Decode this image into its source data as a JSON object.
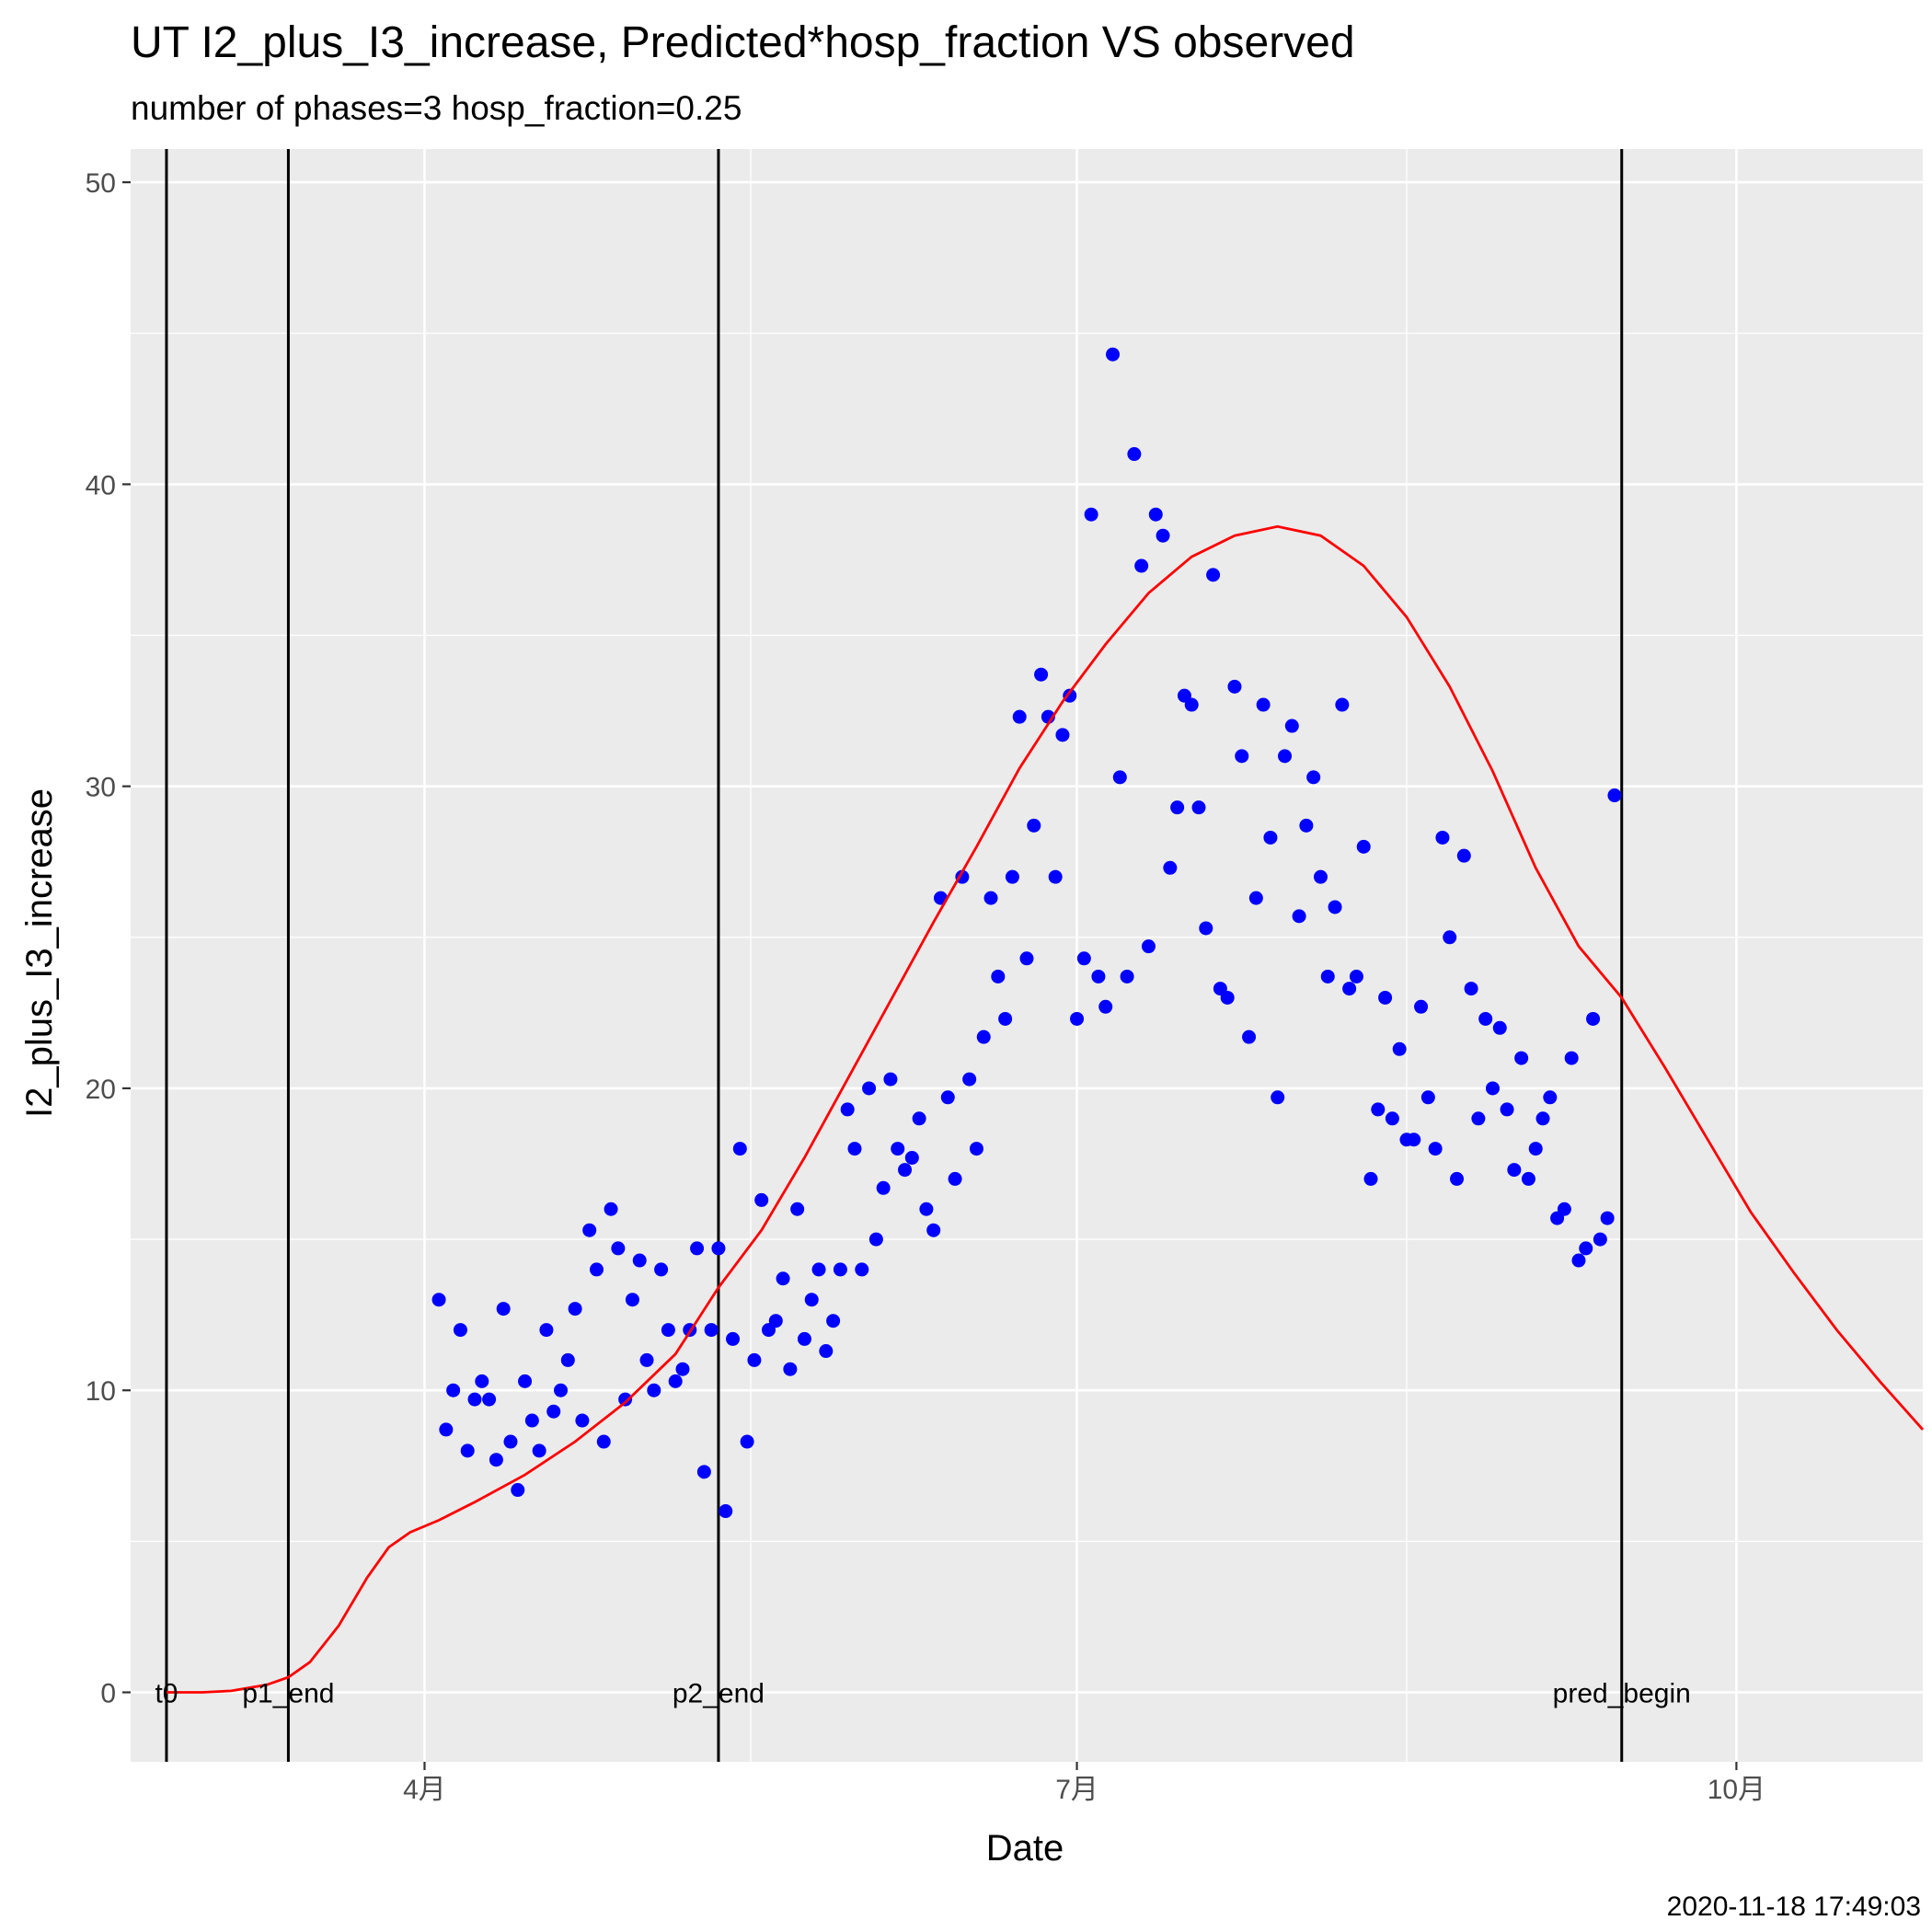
{
  "chart_data": {
    "type": "scatter",
    "title": "UT I2_plus_I3_increase, Predicted*hosp_fraction VS observed",
    "subtitle": "number of phases=3   hosp_fraction=0.25",
    "xlabel": "Date",
    "ylabel": "I2_plus_I3_increase",
    "caption": "2020-11-18 17:49:03",
    "xlim": [
      "2020-02-20",
      "2020-10-27"
    ],
    "ylim": [
      -2.3,
      51.1
    ],
    "grid": true,
    "x_ticks": [
      {
        "x": "2020-04-01",
        "label": "4月"
      },
      {
        "x": "2020-07-01",
        "label": "7月"
      },
      {
        "x": "2020-10-01",
        "label": "10月"
      }
    ],
    "y_ticks": [
      0,
      10,
      20,
      30,
      40,
      50
    ],
    "vertical_lines": [
      {
        "x": "2020-02-25",
        "label": "t0"
      },
      {
        "x": "2020-03-13",
        "label": "p1_end"
      },
      {
        "x": "2020-05-12",
        "label": "p2_end"
      },
      {
        "x": "2020-09-15",
        "label": "pred_begin"
      }
    ],
    "colors": {
      "observed": "#0000ff",
      "predicted": "#ff0000",
      "vline": "#000000",
      "panel": "#ebebeb",
      "grid": "#ffffff"
    },
    "series": [
      {
        "type": "scatter",
        "color": "#0000ff",
        "points": [
          [
            "2020-04-03",
            13.0
          ],
          [
            "2020-04-04",
            8.7
          ],
          [
            "2020-04-05",
            10.0
          ],
          [
            "2020-04-06",
            12.0
          ],
          [
            "2020-04-07",
            8.0
          ],
          [
            "2020-04-08",
            9.7
          ],
          [
            "2020-04-09",
            10.3
          ],
          [
            "2020-04-10",
            9.7
          ],
          [
            "2020-04-11",
            7.7
          ],
          [
            "2020-04-12",
            12.7
          ],
          [
            "2020-04-13",
            8.3
          ],
          [
            "2020-04-14",
            6.7
          ],
          [
            "2020-04-15",
            10.3
          ],
          [
            "2020-04-16",
            9.0
          ],
          [
            "2020-04-17",
            8.0
          ],
          [
            "2020-04-18",
            12.0
          ],
          [
            "2020-04-19",
            9.3
          ],
          [
            "2020-04-20",
            10.0
          ],
          [
            "2020-04-21",
            11.0
          ],
          [
            "2020-04-22",
            12.7
          ],
          [
            "2020-04-23",
            9.0
          ],
          [
            "2020-04-24",
            15.3
          ],
          [
            "2020-04-25",
            14.0
          ],
          [
            "2020-04-26",
            8.3
          ],
          [
            "2020-04-27",
            16.0
          ],
          [
            "2020-04-28",
            14.7
          ],
          [
            "2020-04-29",
            9.7
          ],
          [
            "2020-04-30",
            13.0
          ],
          [
            "2020-05-01",
            14.3
          ],
          [
            "2020-05-02",
            11.0
          ],
          [
            "2020-05-03",
            10.0
          ],
          [
            "2020-05-04",
            14.0
          ],
          [
            "2020-05-05",
            12.0
          ],
          [
            "2020-05-06",
            10.3
          ],
          [
            "2020-05-07",
            10.7
          ],
          [
            "2020-05-08",
            12.0
          ],
          [
            "2020-05-09",
            14.7
          ],
          [
            "2020-05-10",
            7.3
          ],
          [
            "2020-05-11",
            12.0
          ],
          [
            "2020-05-12",
            14.7
          ],
          [
            "2020-05-13",
            6.0
          ],
          [
            "2020-05-14",
            11.7
          ],
          [
            "2020-05-15",
            18.0
          ],
          [
            "2020-05-16",
            8.3
          ],
          [
            "2020-05-17",
            11.0
          ],
          [
            "2020-05-18",
            16.3
          ],
          [
            "2020-05-19",
            12.0
          ],
          [
            "2020-05-20",
            12.3
          ],
          [
            "2020-05-21",
            13.7
          ],
          [
            "2020-05-22",
            10.7
          ],
          [
            "2020-05-23",
            16.0
          ],
          [
            "2020-05-24",
            11.7
          ],
          [
            "2020-05-25",
            13.0
          ],
          [
            "2020-05-26",
            14.0
          ],
          [
            "2020-05-27",
            11.3
          ],
          [
            "2020-05-28",
            12.3
          ],
          [
            "2020-05-29",
            14.0
          ],
          [
            "2020-05-30",
            19.3
          ],
          [
            "2020-05-31",
            18.0
          ],
          [
            "2020-06-01",
            14.0
          ],
          [
            "2020-06-02",
            20.0
          ],
          [
            "2020-06-03",
            15.0
          ],
          [
            "2020-06-04",
            16.7
          ],
          [
            "2020-06-05",
            20.3
          ],
          [
            "2020-06-06",
            18.0
          ],
          [
            "2020-06-07",
            17.3
          ],
          [
            "2020-06-08",
            17.7
          ],
          [
            "2020-06-09",
            19.0
          ],
          [
            "2020-06-10",
            16.0
          ],
          [
            "2020-06-11",
            15.3
          ],
          [
            "2020-06-12",
            26.3
          ],
          [
            "2020-06-13",
            19.7
          ],
          [
            "2020-06-14",
            17.0
          ],
          [
            "2020-06-15",
            27.0
          ],
          [
            "2020-06-16",
            20.3
          ],
          [
            "2020-06-17",
            18.0
          ],
          [
            "2020-06-18",
            21.7
          ],
          [
            "2020-06-19",
            26.3
          ],
          [
            "2020-06-20",
            23.7
          ],
          [
            "2020-06-21",
            22.3
          ],
          [
            "2020-06-22",
            27.0
          ],
          [
            "2020-06-23",
            32.3
          ],
          [
            "2020-06-24",
            24.3
          ],
          [
            "2020-06-25",
            28.7
          ],
          [
            "2020-06-26",
            33.7
          ],
          [
            "2020-06-27",
            32.3
          ],
          [
            "2020-06-28",
            27.0
          ],
          [
            "2020-06-29",
            31.7
          ],
          [
            "2020-06-30",
            33.0
          ],
          [
            "2020-07-01",
            22.3
          ],
          [
            "2020-07-02",
            24.3
          ],
          [
            "2020-07-03",
            39.0
          ],
          [
            "2020-07-04",
            23.7
          ],
          [
            "2020-07-05",
            22.7
          ],
          [
            "2020-07-06",
            44.3
          ],
          [
            "2020-07-07",
            30.3
          ],
          [
            "2020-07-08",
            23.7
          ],
          [
            "2020-07-09",
            41.0
          ],
          [
            "2020-07-10",
            37.3
          ],
          [
            "2020-07-11",
            24.7
          ],
          [
            "2020-07-12",
            39.0
          ],
          [
            "2020-07-13",
            38.3
          ],
          [
            "2020-07-14",
            27.3
          ],
          [
            "2020-07-15",
            29.3
          ],
          [
            "2020-07-16",
            33.0
          ],
          [
            "2020-07-17",
            32.7
          ],
          [
            "2020-07-18",
            29.3
          ],
          [
            "2020-07-19",
            25.3
          ],
          [
            "2020-07-20",
            37.0
          ],
          [
            "2020-07-21",
            23.3
          ],
          [
            "2020-07-22",
            23.0
          ],
          [
            "2020-07-23",
            33.3
          ],
          [
            "2020-07-24",
            31.0
          ],
          [
            "2020-07-25",
            21.7
          ],
          [
            "2020-07-26",
            26.3
          ],
          [
            "2020-07-27",
            32.7
          ],
          [
            "2020-07-28",
            28.3
          ],
          [
            "2020-07-29",
            19.7
          ],
          [
            "2020-07-30",
            31.0
          ],
          [
            "2020-07-31",
            32.0
          ],
          [
            "2020-08-01",
            25.7
          ],
          [
            "2020-08-02",
            28.7
          ],
          [
            "2020-08-03",
            30.3
          ],
          [
            "2020-08-04",
            27.0
          ],
          [
            "2020-08-05",
            23.7
          ],
          [
            "2020-08-06",
            26.0
          ],
          [
            "2020-08-07",
            32.7
          ],
          [
            "2020-08-08",
            23.3
          ],
          [
            "2020-08-09",
            23.7
          ],
          [
            "2020-08-10",
            28.0
          ],
          [
            "2020-08-11",
            17.0
          ],
          [
            "2020-08-12",
            19.3
          ],
          [
            "2020-08-13",
            23.0
          ],
          [
            "2020-08-14",
            19.0
          ],
          [
            "2020-08-15",
            21.3
          ],
          [
            "2020-08-16",
            18.3
          ],
          [
            "2020-08-17",
            18.3
          ],
          [
            "2020-08-18",
            22.7
          ],
          [
            "2020-08-19",
            19.7
          ],
          [
            "2020-08-20",
            18.0
          ],
          [
            "2020-08-21",
            28.3
          ],
          [
            "2020-08-22",
            25.0
          ],
          [
            "2020-08-23",
            17.0
          ],
          [
            "2020-08-24",
            27.7
          ],
          [
            "2020-08-25",
            23.3
          ],
          [
            "2020-08-26",
            19.0
          ],
          [
            "2020-08-27",
            22.3
          ],
          [
            "2020-08-28",
            20.0
          ],
          [
            "2020-08-29",
            22.0
          ],
          [
            "2020-08-30",
            19.3
          ],
          [
            "2020-08-31",
            17.3
          ],
          [
            "2020-09-01",
            21.0
          ],
          [
            "2020-09-02",
            17.0
          ],
          [
            "2020-09-03",
            18.0
          ],
          [
            "2020-09-04",
            19.0
          ],
          [
            "2020-09-05",
            19.7
          ],
          [
            "2020-09-06",
            15.7
          ],
          [
            "2020-09-07",
            16.0
          ],
          [
            "2020-09-08",
            21.0
          ],
          [
            "2020-09-09",
            14.3
          ],
          [
            "2020-09-10",
            14.7
          ],
          [
            "2020-09-11",
            22.3
          ],
          [
            "2020-09-12",
            15.0
          ],
          [
            "2020-09-13",
            15.7
          ],
          [
            "2020-09-14",
            29.7
          ]
        ]
      },
      {
        "type": "line",
        "color": "#ff0000",
        "points": [
          [
            "2020-02-25",
            0.0
          ],
          [
            "2020-03-01",
            0.0
          ],
          [
            "2020-03-05",
            0.05
          ],
          [
            "2020-03-10",
            0.25
          ],
          [
            "2020-03-13",
            0.5
          ],
          [
            "2020-03-16",
            1.0
          ],
          [
            "2020-03-20",
            2.2
          ],
          [
            "2020-03-24",
            3.8
          ],
          [
            "2020-03-27",
            4.8
          ],
          [
            "2020-03-30",
            5.3
          ],
          [
            "2020-04-03",
            5.7
          ],
          [
            "2020-04-08",
            6.3
          ],
          [
            "2020-04-15",
            7.2
          ],
          [
            "2020-04-22",
            8.3
          ],
          [
            "2020-04-29",
            9.6
          ],
          [
            "2020-05-06",
            11.2
          ],
          [
            "2020-05-12",
            13.4
          ],
          [
            "2020-05-18",
            15.3
          ],
          [
            "2020-05-24",
            17.7
          ],
          [
            "2020-05-30",
            20.3
          ],
          [
            "2020-06-05",
            22.9
          ],
          [
            "2020-06-11",
            25.5
          ],
          [
            "2020-06-17",
            28.0
          ],
          [
            "2020-06-23",
            30.6
          ],
          [
            "2020-06-29",
            32.8
          ],
          [
            "2020-07-05",
            34.7
          ],
          [
            "2020-07-11",
            36.4
          ],
          [
            "2020-07-17",
            37.6
          ],
          [
            "2020-07-23",
            38.3
          ],
          [
            "2020-07-29",
            38.6
          ],
          [
            "2020-08-04",
            38.3
          ],
          [
            "2020-08-10",
            37.3
          ],
          [
            "2020-08-16",
            35.6
          ],
          [
            "2020-08-22",
            33.3
          ],
          [
            "2020-08-28",
            30.5
          ],
          [
            "2020-09-03",
            27.3
          ],
          [
            "2020-09-09",
            24.7
          ],
          [
            "2020-09-15",
            23.0
          ],
          [
            "2020-09-21",
            20.7
          ],
          [
            "2020-09-27",
            18.3
          ],
          [
            "2020-10-03",
            15.9
          ],
          [
            "2020-10-09",
            13.9
          ],
          [
            "2020-10-15",
            12.0
          ],
          [
            "2020-10-21",
            10.3
          ],
          [
            "2020-10-27",
            8.7
          ]
        ]
      }
    ]
  }
}
